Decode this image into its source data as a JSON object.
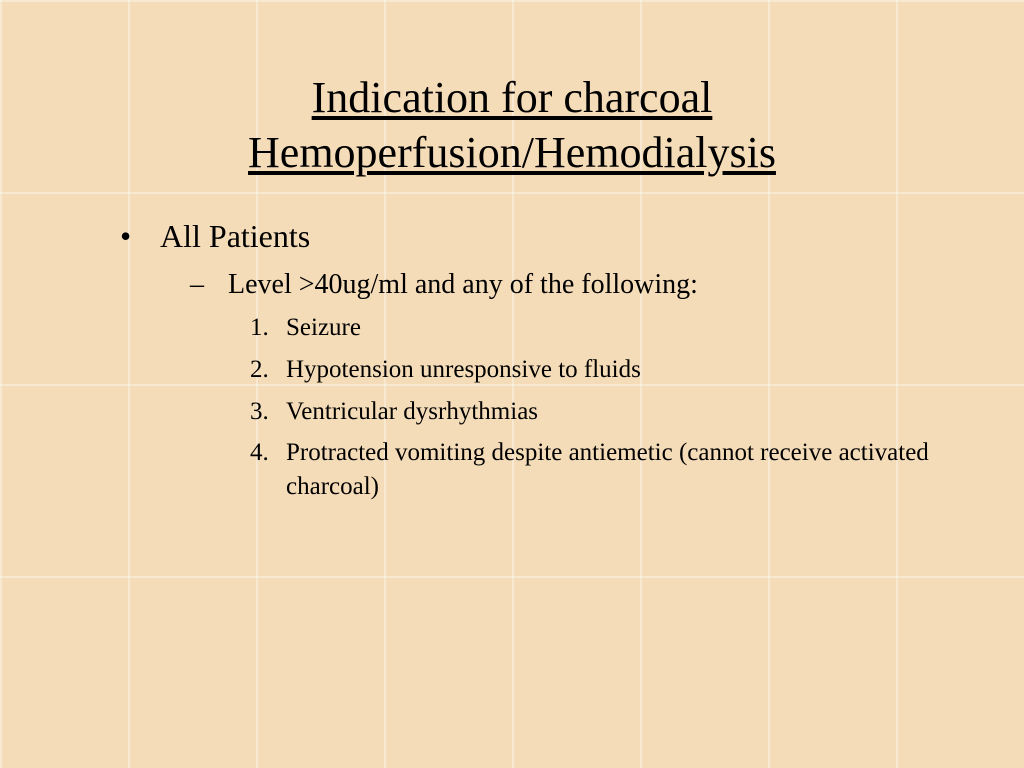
{
  "styling": {
    "background_color": "#f5dcb8",
    "text_color": "#000000",
    "font_family": "Times New Roman",
    "title_fontsize": 44,
    "title_underline": true,
    "level1_fontsize": 32,
    "level1_marker": "•",
    "level2_fontsize": 28,
    "level2_marker": "–",
    "level3_fontsize": 25,
    "level3_marker": "decimal",
    "grid_line_color": "rgba(255,255,255,0.35)",
    "grid_cell_width": 128,
    "grid_cell_height": 192
  },
  "title": "Indication for charcoal Hemoperfusion/Hemodialysis",
  "bullets": {
    "l1_0": "All Patients",
    "l2_0": "Level >40ug/ml and any of the following:",
    "l3_0": "Seizure",
    "l3_1": "Hypotension unresponsive to fluids",
    "l3_2": "Ventricular dysrhythmias",
    "l3_3": "Protracted vomiting despite antiemetic (cannot receive activated charcoal)"
  }
}
